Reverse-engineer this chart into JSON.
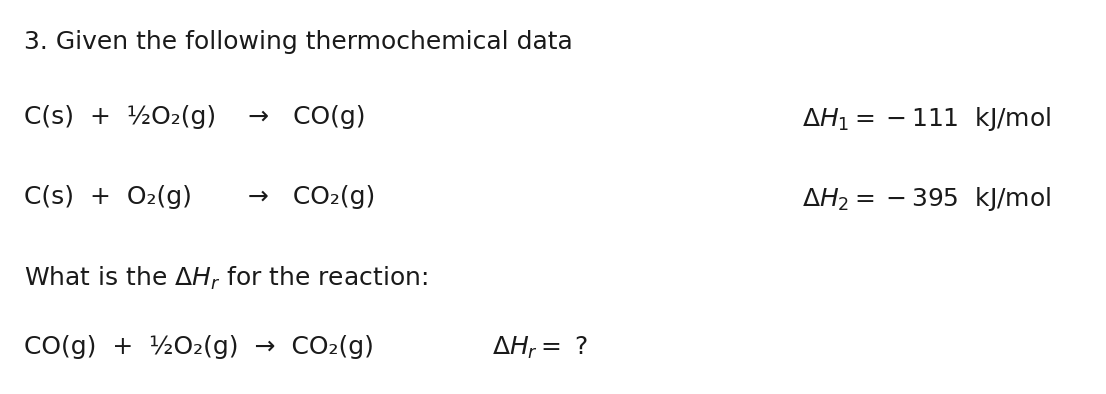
{
  "bg_color": "#ffffff",
  "text_color": "#1a1a1a",
  "title": "3. Given the following thermochemical data",
  "line1_left": "C(s)  +  ½O₂(g)    →   CO(g)",
  "line1_right_math": "$\\Delta H_1 = -111$  kJ/mol",
  "line2_left": "C(s)  +  O₂(g)       →   CO₂(g)",
  "line2_right_math": "$\\Delta H_2 = -395$  kJ/mol",
  "line3": "What is the $\\Delta H_r$ for the reaction:",
  "line4_left": "CO(g)  +  ½O₂(g)  →  CO₂(g)",
  "line4_right_math": "$\\Delta H_r = $ ?",
  "font_size_title": 18,
  "font_size_body": 18,
  "font_family": "Arial"
}
